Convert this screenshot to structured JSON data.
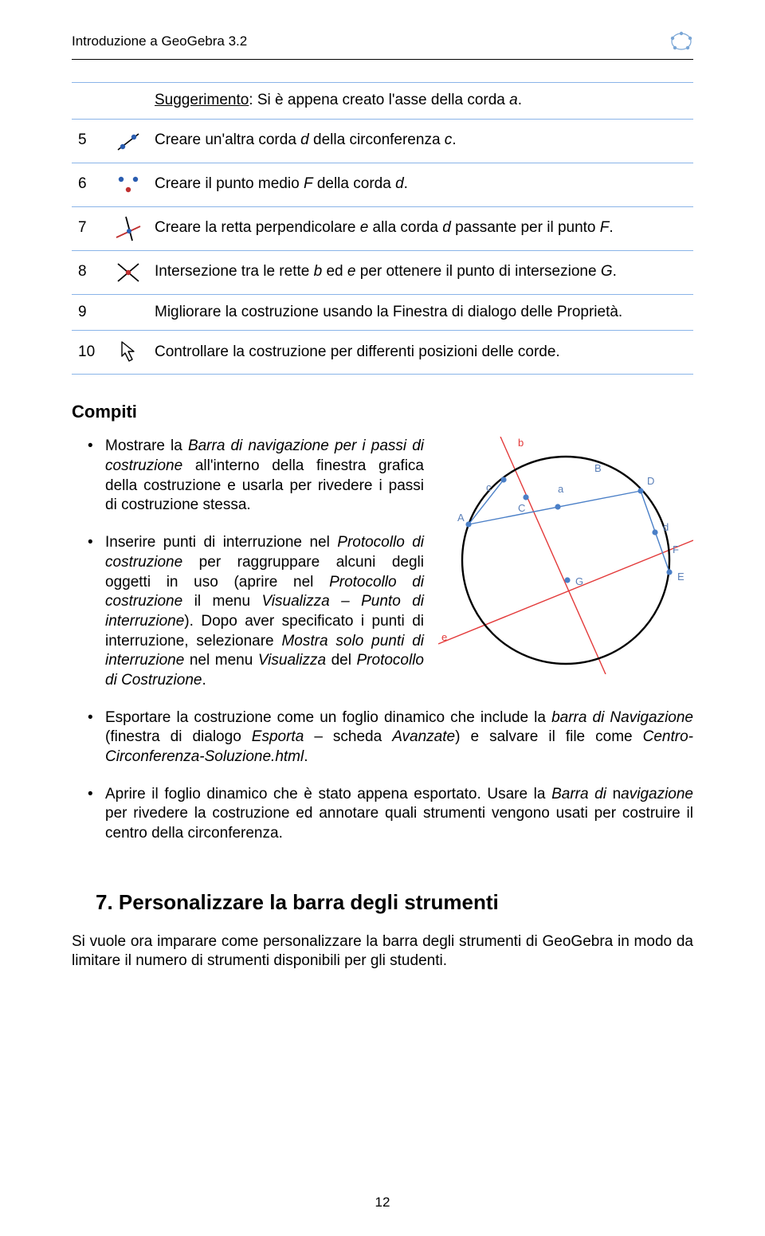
{
  "header": {
    "title": "Introduzione a GeoGebra 3.2",
    "logo_color": "#7aa6d6"
  },
  "steps": [
    {
      "num": "",
      "icon": null,
      "html": "<span class=\"underline\">Suggerimento</span>: Si è appena creato l'asse della corda  <span class=\"italic\">a</span>."
    },
    {
      "num": "5",
      "icon": "line-two-points",
      "html": "Creare un'altra corda <span class=\"italic\">d</span> della circonferenza <span class=\"italic\">c</span>."
    },
    {
      "num": "6",
      "icon": "midpoint",
      "html": "Creare il punto medio <span class=\"italic\">F</span> della corda <span class=\"italic\">d</span>."
    },
    {
      "num": "7",
      "icon": "perpendicular",
      "html": "Creare la retta perpendicolare <span class=\"italic\">e</span> alla corda <span class=\"italic\">d</span> passante per il punto <span class=\"italic\">F</span>."
    },
    {
      "num": "8",
      "icon": "intersect",
      "html": "Intersezione tra le rette <span class=\"italic\">b</span> ed <span class=\"italic\">e</span> per ottenere il punto di intersezione <span class=\"italic\">G</span>."
    },
    {
      "num": "9",
      "icon": null,
      "html": "Migliorare la costruzione usando la Finestra di dialogo delle Proprietà.",
      "justify": true
    },
    {
      "num": "10",
      "icon": "arrow",
      "html": "Controllare la costruzione per differenti posizioni delle corde."
    }
  ],
  "compiti": {
    "title": "Compiti",
    "items": [
      "Mostrare la <span class=\"italic\">Barra di navigazione per i passi di costruzione</span> all'interno della finestra grafica della costruzione e usarla per rivedere i passi di costruzione stessa.",
      "Inserire punti di interruzione nel <span class=\"italic\">Protocollo di costruzione</span> per raggruppare alcuni degli oggetti in uso (aprire nel <span class=\"italic\">Protocollo di costruzione</span> il menu <span class=\"italic\">Visualizza – Punto di interruzione</span>). Dopo aver specificato i punti di interruzione, selezionare <span class=\"italic\">Mostra solo punti di interruzione</span> nel menu <span class=\"italic\">Visualizza</span> del <span class=\"italic\">Protocollo di Costruzione</span>.",
      "Esportare la costruzione come un foglio dinamico che include la  <span class=\"italic\">barra di Navigazione</span> (finestra di dialogo <span class=\"italic\">Esporta</span> – scheda <span class=\"italic\">Avanzate</span>) e salvare il file come <span class=\"italic\">Centro-Circonferenza-Soluzione.html</span>.",
      "Aprire il foglio dinamico che è stato appena esportato. Usare la <span class=\"italic\">Barra di</span> n<span class=\"italic\">avigazione</span>  per rivedere la costruzione ed annotare quali strumenti vengono usati per costruire il centro della circonferenza."
    ]
  },
  "heading7": "7. Personalizzare la barra degli strumenti",
  "body_after": "Si vuole ora imparare come personalizzare la barra degli strumenti di GeoGebra in modo da limitare il numero di strumenti disponibili per gli studenti.",
  "page_number": "12",
  "figure": {
    "circle_stroke": "#000000",
    "line_color_red": "#e33a3a",
    "line_color_blue": "#4a7fc7",
    "point_fill": "#4a7fc7",
    "label_color": "#5a7fb8"
  }
}
